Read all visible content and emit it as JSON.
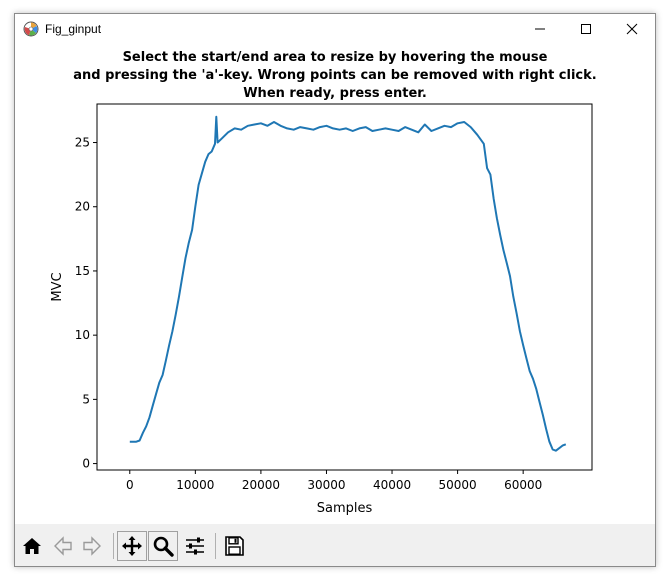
{
  "window": {
    "title": "Fig_ginput"
  },
  "figure": {
    "title_lines": [
      "Select the start/end area to resize by hovering the mouse",
      "and pressing the 'a'-key. Wrong points can be removed with right click.",
      "When ready, press enter."
    ]
  },
  "chart_data": {
    "type": "line",
    "xlabel": "Samples",
    "ylabel": "MVC",
    "xlim": [
      -5000,
      70500
    ],
    "ylim": [
      -0.5,
      28
    ],
    "x_ticks": [
      0,
      10000,
      20000,
      30000,
      40000,
      50000,
      60000
    ],
    "x_tick_labels": [
      "0",
      "10000",
      "20000",
      "30000",
      "40000",
      "50000",
      "60000"
    ],
    "y_ticks": [
      0,
      5,
      10,
      15,
      20,
      25
    ],
    "y_tick_labels": [
      "0",
      "5",
      "10",
      "15",
      "20",
      "25"
    ],
    "grid": false,
    "series": [
      {
        "color": "#1f77b4",
        "x": [
          0,
          1000,
          1500,
          2000,
          2500,
          3000,
          3500,
          4000,
          4500,
          5000,
          5500,
          6000,
          6500,
          7000,
          7500,
          8000,
          8500,
          9000,
          9500,
          10000,
          10500,
          11000,
          11500,
          12000,
          12500,
          13000,
          13200,
          13400,
          14000,
          15000,
          16000,
          17000,
          18000,
          19000,
          20000,
          21000,
          22000,
          23000,
          24000,
          25000,
          26000,
          27000,
          28000,
          29000,
          30000,
          31000,
          32000,
          33000,
          34000,
          35000,
          36000,
          37000,
          38000,
          39000,
          40000,
          41000,
          42000,
          43000,
          44000,
          45000,
          46000,
          47000,
          48000,
          49000,
          50000,
          51000,
          52000,
          53000,
          54000,
          54500,
          55000,
          55500,
          56000,
          56500,
          57000,
          57500,
          58000,
          58500,
          59000,
          59500,
          60000,
          60500,
          61000,
          61500,
          62000,
          62500,
          63000,
          63500,
          64000,
          64500,
          65000,
          65500,
          66000,
          66500
        ],
        "y": [
          1.7,
          1.7,
          1.8,
          2.4,
          2.9,
          3.6,
          4.5,
          5.4,
          6.3,
          6.9,
          8.0,
          9.2,
          10.3,
          11.6,
          13.0,
          14.5,
          16.0,
          17.2,
          18.2,
          20.0,
          21.7,
          22.6,
          23.5,
          24.1,
          24.3,
          24.9,
          27.0,
          25.0,
          25.3,
          25.8,
          26.1,
          26.0,
          26.3,
          26.4,
          26.5,
          26.3,
          26.6,
          26.3,
          26.1,
          26.0,
          26.2,
          26.1,
          26.0,
          26.2,
          26.3,
          26.1,
          26.0,
          26.1,
          25.9,
          26.1,
          26.2,
          25.9,
          26.0,
          26.1,
          26.0,
          25.9,
          26.2,
          26.0,
          25.8,
          26.4,
          25.9,
          26.1,
          26.3,
          26.2,
          26.5,
          26.6,
          26.2,
          25.6,
          24.9,
          23.0,
          22.5,
          20.6,
          19.1,
          17.8,
          16.6,
          15.6,
          14.6,
          13.0,
          11.7,
          10.3,
          9.2,
          8.2,
          7.2,
          6.6,
          5.8,
          4.8,
          3.8,
          2.7,
          1.7,
          1.1,
          1.0,
          1.2,
          1.4,
          1.5
        ]
      }
    ]
  },
  "toolbar": {
    "buttons": [
      "home-icon",
      "back-icon",
      "forward-icon",
      "pan-icon",
      "zoom-icon",
      "configure-subplots-icon",
      "save-icon"
    ]
  }
}
